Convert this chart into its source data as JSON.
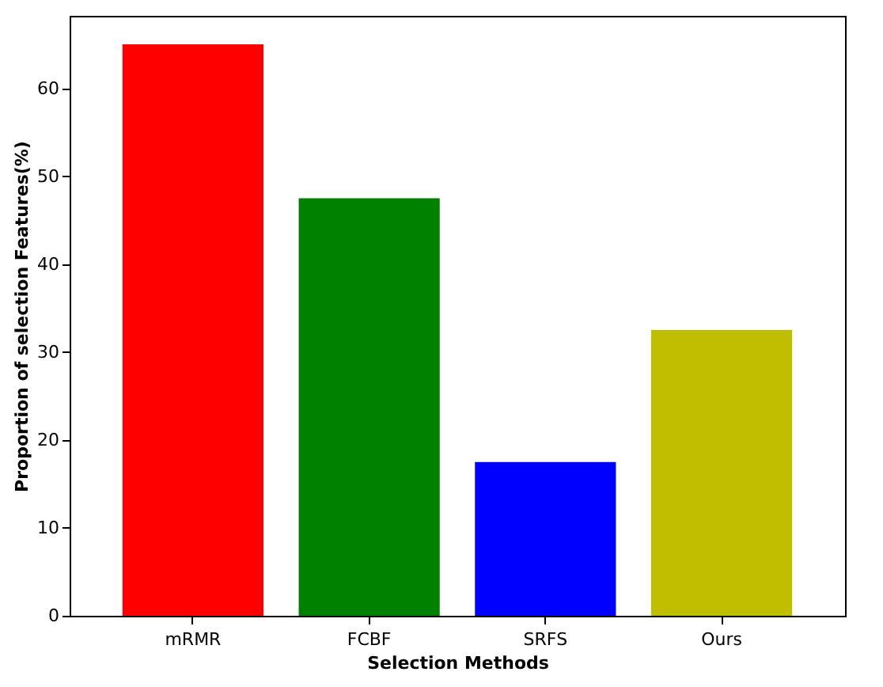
{
  "chart_data": {
    "type": "bar",
    "xlabel": "Selection Methods",
    "ylabel": "Proportion of selection Features(%)",
    "categories": [
      "mRMR",
      "FCBF",
      "SRFS",
      "Ours"
    ],
    "values": [
      65,
      47.5,
      17.5,
      32.5
    ],
    "colors": [
      "#ff0000",
      "#008000",
      "#0000ff",
      "#bfbf00"
    ],
    "ylim": [
      0,
      68.25
    ],
    "yticks": [
      0,
      10,
      20,
      30,
      40,
      50,
      60
    ],
    "grid": false,
    "legend": false
  }
}
